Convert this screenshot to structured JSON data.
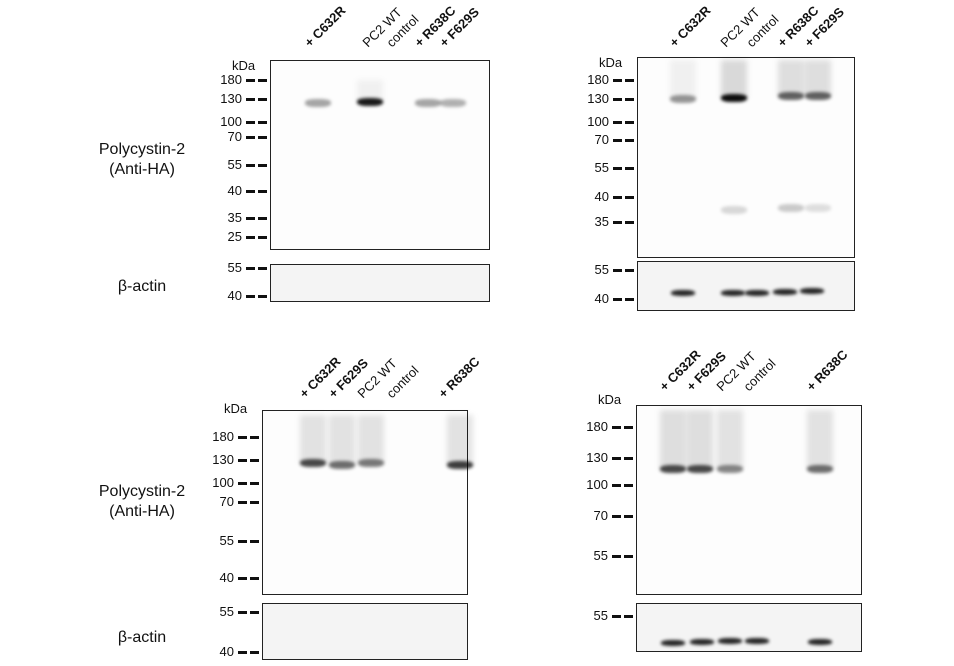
{
  "row_labels": {
    "top_blot": "Polycystin-2\n(Anti-HA)",
    "top_actin": "β-actin",
    "bottom_blot": "Polycystin-2\n(Anti-HA)",
    "bottom_actin": "β-actin"
  },
  "unit_label": "kDa",
  "panels": [
    {
      "lanes": [
        "+ C632R",
        "PC2 WT",
        "control",
        "+ R638C",
        "+ F629S"
      ],
      "markers": [
        "180",
        "130",
        "100",
        "70",
        "55",
        "40",
        "35",
        "25"
      ],
      "actin_markers": [
        "55",
        "40"
      ]
    },
    {
      "lanes": [
        "+ C632R",
        "PC2 WT",
        "control",
        "+ R638C",
        "+ F629S"
      ],
      "markers": [
        "180",
        "130",
        "100",
        "70",
        "55",
        "40",
        "35"
      ],
      "actin_markers": [
        "55",
        "40"
      ]
    },
    {
      "lanes": [
        "+ C632R",
        "+ F629S",
        "PC2 WT",
        "control",
        "+ R638C"
      ],
      "markers": [
        "180",
        "130",
        "100",
        "70",
        "55",
        "40"
      ],
      "actin_markers": [
        "55",
        "40"
      ]
    },
    {
      "lanes": [
        "+ C632R",
        "+ F629S",
        "PC2 WT",
        "control",
        "+ R638C"
      ],
      "markers": [
        "180",
        "130",
        "100",
        "70",
        "55"
      ],
      "actin_markers": [
        "55"
      ]
    }
  ]
}
